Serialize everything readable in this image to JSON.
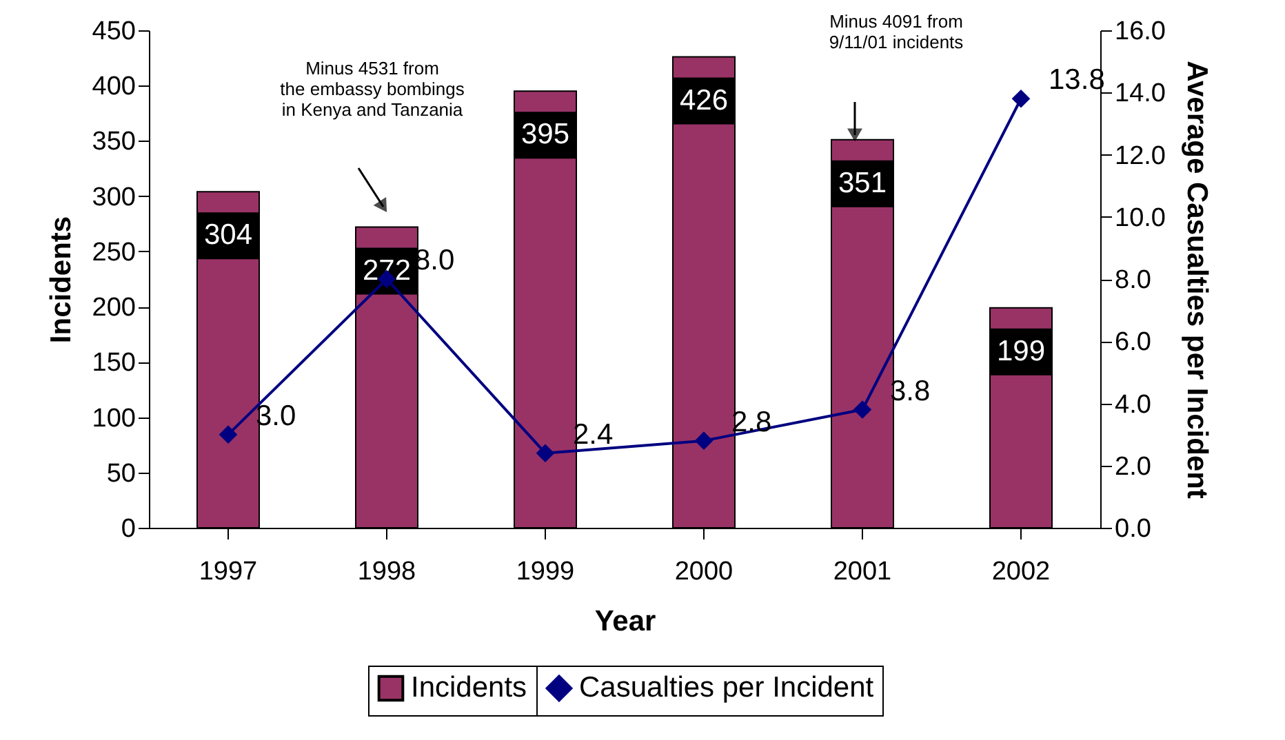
{
  "chart_data": {
    "type": "bar",
    "categories": [
      "1997",
      "1998",
      "1999",
      "2000",
      "2001",
      "2002"
    ],
    "xlabel": "Year",
    "ylabel": "Incidents",
    "y2label": "Average Casualties\nper Incident",
    "series": [
      {
        "name": "Incidents",
        "color": "#993366",
        "values": [
          304,
          272,
          395,
          426,
          351,
          199
        ],
        "value_labels": [
          "304",
          "272",
          "395",
          "426",
          "351",
          "199"
        ]
      },
      {
        "name": "Casualties per Incident",
        "type": "line",
        "axis": "y2",
        "color": "#000080",
        "marker": "diamond",
        "values": [
          3.0,
          8.0,
          2.4,
          2.8,
          3.8,
          13.8
        ],
        "value_labels": [
          "3.0",
          "8.0",
          "2.4",
          "2.8",
          "3.8",
          "13.8"
        ]
      }
    ],
    "ylim": [
      0,
      450
    ],
    "yticks": [
      0,
      50,
      100,
      150,
      200,
      250,
      300,
      350,
      400,
      450
    ],
    "y2lim": [
      0,
      16
    ],
    "y2ticks": [
      {
        "value": 0,
        "label": "0.0"
      },
      {
        "value": 2,
        "label": "2.0"
      },
      {
        "value": 4,
        "label": "4.0"
      },
      {
        "value": 6,
        "label": "6.0"
      },
      {
        "value": 8,
        "label": "8.0"
      },
      {
        "value": 10,
        "label": "10.0"
      },
      {
        "value": 12,
        "label": "12.0"
      },
      {
        "value": 14,
        "label": "14.0"
      },
      {
        "value": 16,
        "label": "16.0"
      }
    ],
    "annotations": [
      "Minus 4531 from\nthe embassy bombings\nin Kenya and Tanzania",
      "Minus 4091 from\n9/11/01 incidents"
    ],
    "grid": false,
    "legend": "bottom"
  }
}
